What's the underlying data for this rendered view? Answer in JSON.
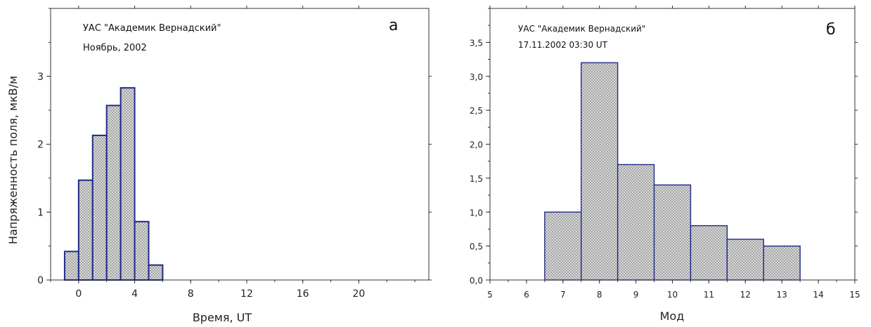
{
  "chart_data": [
    {
      "type": "bar",
      "panel_letter": "а",
      "annotations": [
        "УАС \"Академик Вернадский\"",
        "Ноябрь, 2002"
      ],
      "xlabel": "Время, UT",
      "ylabel": "Напряженность поля, мкВ/м",
      "xlim": [
        -2,
        25
      ],
      "ylim": [
        0,
        4
      ],
      "xticks": [
        0,
        4,
        8,
        12,
        16,
        20
      ],
      "yticks": [
        0,
        1,
        2,
        3
      ],
      "x": [
        -0.5,
        0.5,
        1.5,
        2.5,
        3.5,
        4.5,
        5.5
      ],
      "values": [
        0.42,
        1.47,
        2.13,
        2.57,
        2.83,
        0.86,
        0.22
      ],
      "bar_width": 1,
      "grid": false,
      "bar_fill": "#c8c8c8",
      "bar_edge": "#1f2a8a"
    },
    {
      "type": "bar",
      "panel_letter": "б",
      "annotations": [
        "УАС \"Академик Вернадский\"",
        "17.11.2002   03:30 UT"
      ],
      "xlabel": "Мод",
      "ylabel": "",
      "xlim": [
        5,
        15
      ],
      "ylim": [
        0,
        4
      ],
      "xticks": [
        5,
        6,
        7,
        8,
        9,
        10,
        11,
        12,
        13,
        14,
        15
      ],
      "xtick_labels": [
        "5",
        "6",
        "7",
        "8",
        "9",
        "10",
        "11",
        "12",
        "13",
        "14",
        "15"
      ],
      "yticks": [
        0,
        0.5,
        1,
        1.5,
        2,
        2.5,
        3,
        3.5
      ],
      "ytick_labels": [
        "0,0",
        "0,5",
        "1,0",
        "1,5",
        "2,0",
        "2,5",
        "3,0",
        "3,5"
      ],
      "x": [
        7,
        8,
        9,
        10,
        11,
        12,
        13
      ],
      "values": [
        1.0,
        3.2,
        1.7,
        1.4,
        0.8,
        0.6,
        0.5
      ],
      "bar_width": 1,
      "grid": false,
      "bar_fill": "#c8c8c8",
      "bar_edge": "#1f2a8a"
    }
  ]
}
